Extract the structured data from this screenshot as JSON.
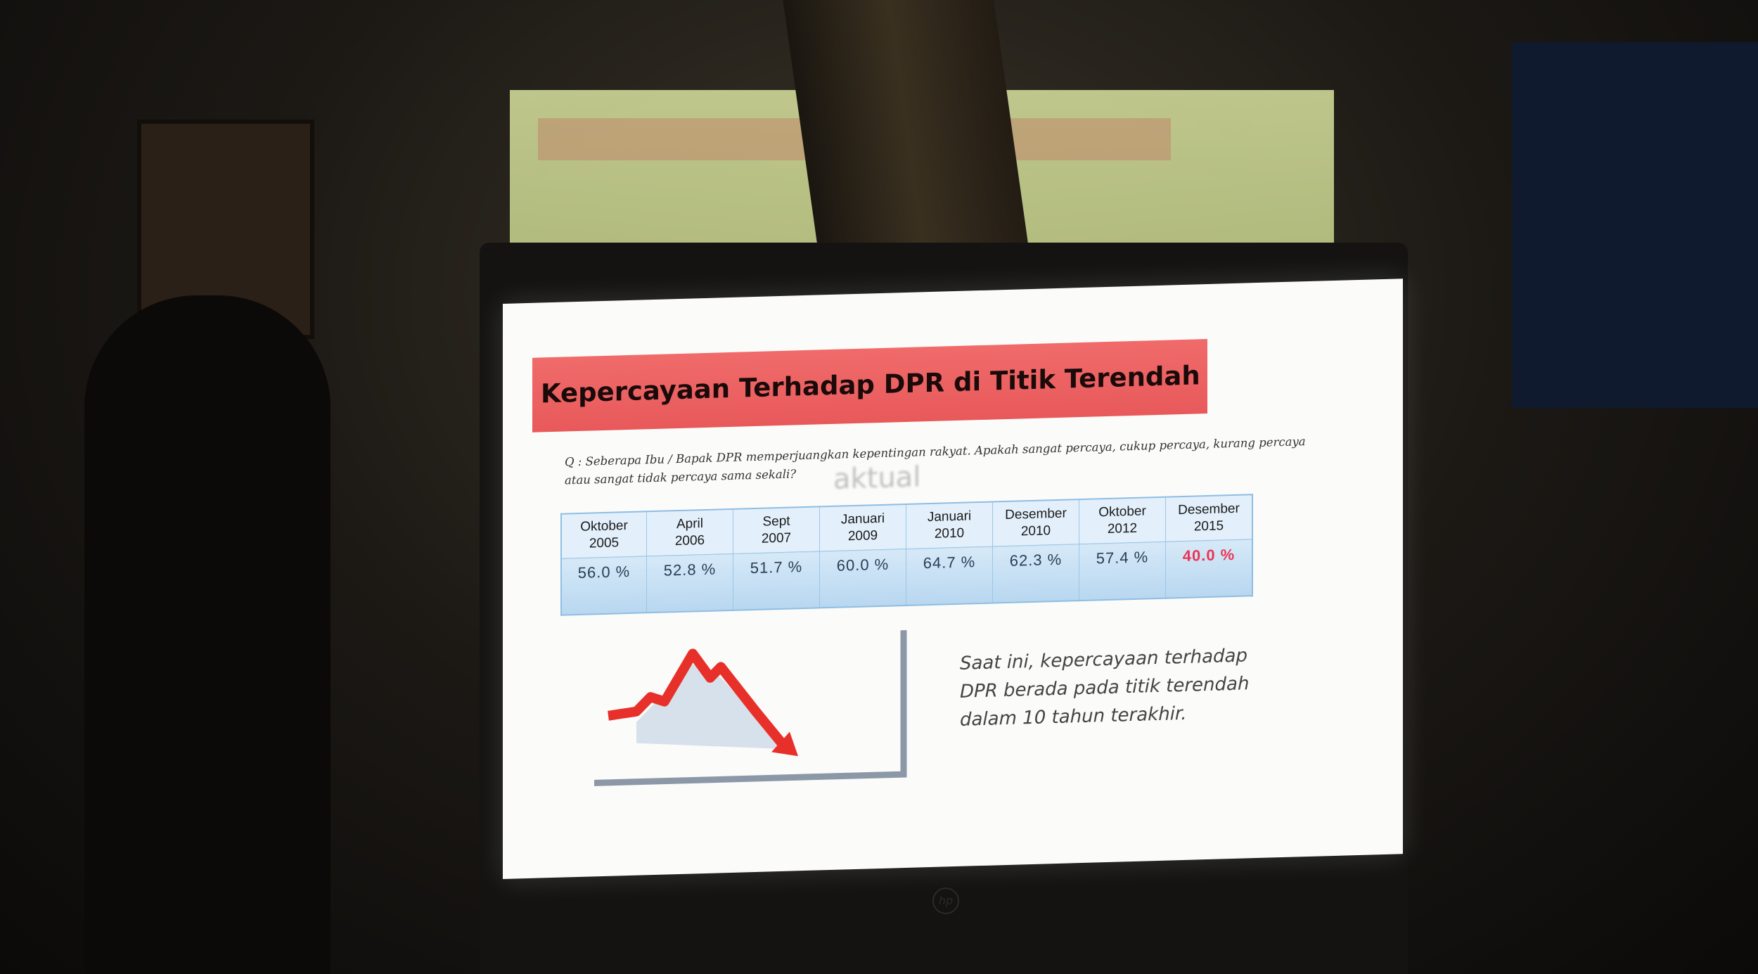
{
  "slide": {
    "title": "Kepercayaan Terhadap DPR di Titik Terendah",
    "title_bar_color": "#e8595a",
    "question": "Q : Seberapa Ibu / Bapak DPR memperjuangkan kepentingan rakyat. Apakah sangat percaya, cukup percaya, kurang percaya atau sangat tidak percaya sama sekali?",
    "watermark": "aktual",
    "table": {
      "headers": [
        [
          "Oktober",
          "2005"
        ],
        [
          "April",
          "2006"
        ],
        [
          "Sept",
          "2007"
        ],
        [
          "Januari",
          "2009"
        ],
        [
          "Januari",
          "2010"
        ],
        [
          "Desember",
          "2010"
        ],
        [
          "Oktober",
          "2012"
        ],
        [
          "Desember",
          "2015"
        ]
      ],
      "values": [
        "56.0 %",
        "52.8 %",
        "51.7 %",
        "60.0 %",
        "64.7 %",
        "62.3 %",
        "57.4 %",
        "40.0 %"
      ],
      "highlight_color": "#ee3355"
    },
    "graphic_icon": "declining-red-arrow-chart-icon",
    "summary_lines": [
      "Saat ini, kepercayaan terhadap",
      "DPR berada pada titik terendah",
      "dalam 10 tahun terakhir."
    ]
  },
  "laptop": {
    "logo": "hp"
  }
}
